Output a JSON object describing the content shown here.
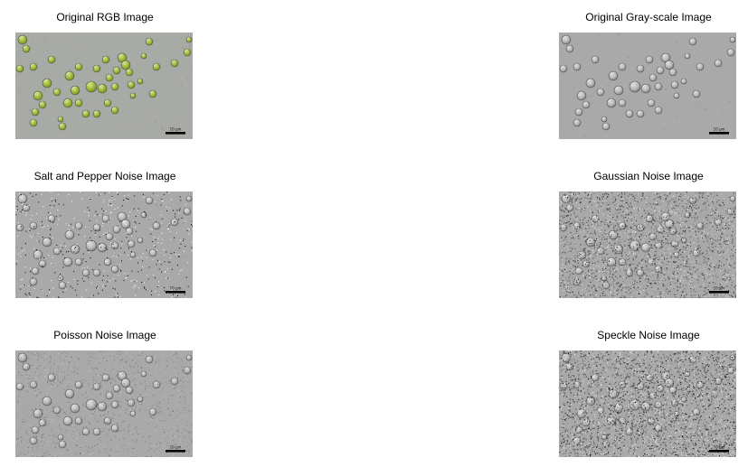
{
  "figure": {
    "panels": [
      {
        "id": "rgb",
        "title": "Original RGB Image",
        "noise": "none",
        "color_mode": "rgb"
      },
      {
        "id": "gray",
        "title": "Original Gray-scale Image",
        "noise": "none",
        "color_mode": "gray"
      },
      {
        "id": "sp",
        "title": "Salt and Pepper Noise Image",
        "noise": "salt-and-pepper",
        "color_mode": "gray"
      },
      {
        "id": "gauss",
        "title": "Gaussian Noise Image",
        "noise": "gaussian",
        "color_mode": "gray"
      },
      {
        "id": "poisson",
        "title": "Poisson Noise Image",
        "noise": "poisson",
        "color_mode": "gray"
      },
      {
        "id": "speckle",
        "title": "Speckle Noise Image",
        "noise": "speckle",
        "color_mode": "gray"
      }
    ],
    "scale_bar_label": "10 µm",
    "colors": {
      "background": "#ffffff",
      "rgb_bg": "#a8aaa6",
      "gray_bg": "#a9a9a9",
      "cell_green": "#9ab83a",
      "cell_green_dark": "#6f8e1e",
      "cell_gray": "#b8b8b8",
      "cell_edge_dark": "#555555",
      "cell_edge_light": "#eeeeee"
    }
  }
}
